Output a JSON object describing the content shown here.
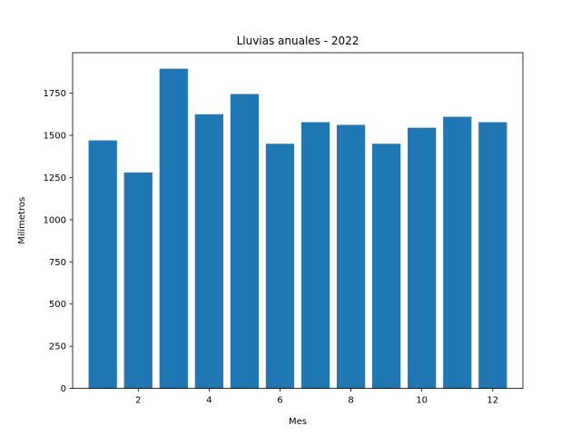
{
  "chart_data": {
    "type": "bar",
    "title": "Lluvias anuales - 2022",
    "xlabel": "Mes",
    "ylabel": "Milímetros",
    "x": [
      1,
      2,
      3,
      4,
      5,
      6,
      7,
      8,
      9,
      10,
      11,
      12
    ],
    "values": [
      1470,
      1280,
      1895,
      1625,
      1745,
      1450,
      1578,
      1562,
      1450,
      1545,
      1610,
      1578
    ],
    "xlim": [
      0.15,
      12.85
    ],
    "ylim": [
      0,
      1990
    ],
    "xticks": [
      2,
      4,
      6,
      8,
      10,
      12
    ],
    "yticks": [
      0,
      250,
      500,
      750,
      1000,
      1250,
      1500,
      1750
    ],
    "bar_width": 0.8,
    "bar_color": "#1f77b4",
    "grid": false
  }
}
